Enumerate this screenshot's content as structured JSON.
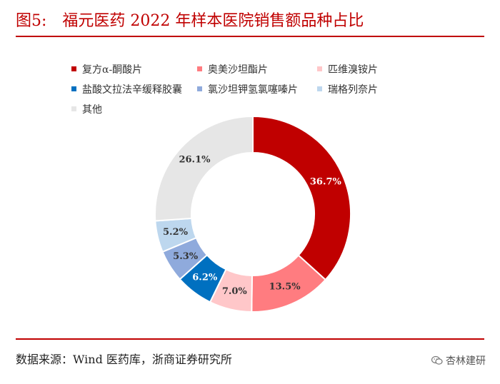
{
  "figure": {
    "number": "图5:",
    "title": "福元医药 2022 年样本医院销售额品种占比"
  },
  "chart_data": {
    "type": "pie",
    "style": "donut",
    "title": "福元医药 2022 年样本医院销售额品种占比",
    "legend_position": "top",
    "slices": [
      {
        "name": "复方α-酮酸片",
        "value": 36.7,
        "label": "36.7%",
        "color": "#c00000",
        "label_color": "#ffffff"
      },
      {
        "name": "奥美沙坦酯片",
        "value": 13.5,
        "label": "13.5%",
        "color": "#ff7c80",
        "label_color": "#333333"
      },
      {
        "name": "匹维溴铵片",
        "value": 7.0,
        "label": "7.0%",
        "color": "#ffc7c9",
        "label_color": "#333333"
      },
      {
        "name": "盐酸文拉法辛缓释胶囊",
        "value": 6.2,
        "label": "6.2%",
        "color": "#0070c0",
        "label_color": "#ffffff"
      },
      {
        "name": "氯沙坦钾氢氯噻嗪片",
        "value": 5.3,
        "label": "5.3%",
        "color": "#8faadc",
        "label_color": "#333333"
      },
      {
        "name": "瑞格列奈片",
        "value": 5.2,
        "label": "5.2%",
        "color": "#bdd7ee",
        "label_color": "#333333"
      },
      {
        "name": "其他",
        "value": 26.1,
        "label": "26.1%",
        "color": "#e6e6e6",
        "label_color": "#333333"
      }
    ]
  },
  "footer": {
    "source": "数据来源：Wind 医药库，浙商证券研究所",
    "watermark": "杏林建研"
  }
}
